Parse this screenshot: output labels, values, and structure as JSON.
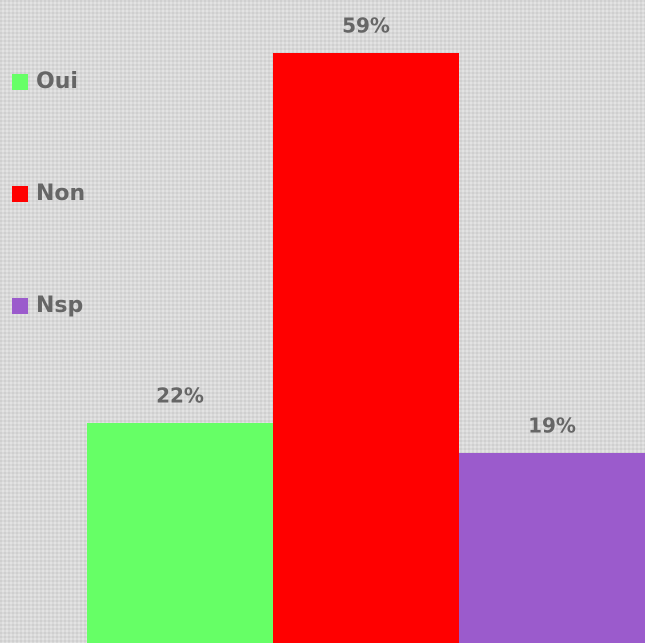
{
  "chart_data": {
    "type": "bar",
    "categories": [
      "Oui",
      "Non",
      "Nsp"
    ],
    "values": [
      22,
      59,
      19
    ],
    "value_labels": [
      "22%",
      "59%",
      "19%"
    ],
    "colors": [
      "#66ff66",
      "#ff0000",
      "#9b5bcc"
    ],
    "legend": "left"
  }
}
